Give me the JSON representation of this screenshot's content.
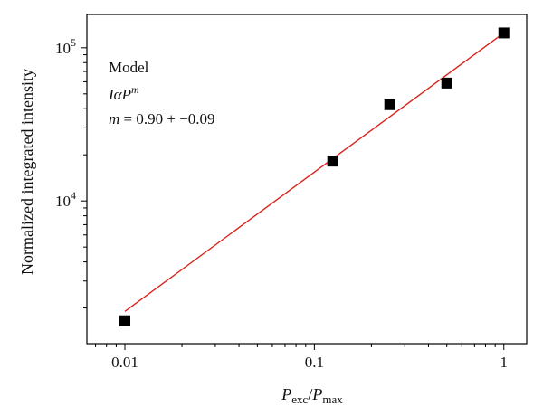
{
  "chart_data": {
    "type": "scatter",
    "x_scale": "log",
    "y_scale": "log",
    "xlim": [
      0.0063,
      1.32
    ],
    "ylim": [
      1170,
      165000
    ],
    "grid": false,
    "xlabel": {
      "main1": "P",
      "sub1": "exc",
      "sep": "/",
      "main2": "P",
      "sub2": "max"
    },
    "ylabel": "Normalized integrated intensity",
    "x_ticks": [
      {
        "value": 0.01,
        "label": "0.01"
      },
      {
        "value": 0.1,
        "label": "0.1"
      },
      {
        "value": 1,
        "label": "1"
      }
    ],
    "y_ticks": [
      {
        "value": 10000,
        "base": "10",
        "exp": "4"
      },
      {
        "value": 100000,
        "base": "10",
        "exp": "5"
      }
    ],
    "series": [
      {
        "kind": "points",
        "marker": "square",
        "color": "#000000",
        "points": [
          {
            "x": 0.01,
            "y": 1650
          },
          {
            "x": 0.125,
            "y": 18200
          },
          {
            "x": 0.25,
            "y": 42500
          },
          {
            "x": 0.5,
            "y": 58800
          },
          {
            "x": 1.0,
            "y": 125000
          }
        ]
      },
      {
        "kind": "fit-line",
        "color": "#d9231d",
        "points": [
          {
            "x": 0.01,
            "y": 1900
          },
          {
            "x": 1.0,
            "y": 125000
          }
        ]
      }
    ],
    "annotations": {
      "model": "Model",
      "formula_i": "I",
      "formula_alpha": "α",
      "formula_p": "P",
      "formula_m": "m",
      "m_var": "m",
      "m_value": " = 0.90 + −0.09"
    }
  }
}
